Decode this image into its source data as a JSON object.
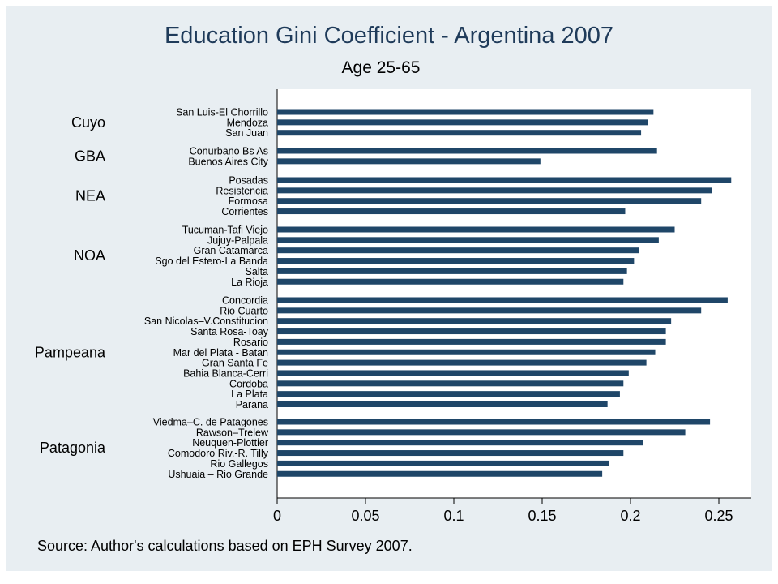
{
  "chart_data": {
    "type": "bar",
    "orientation": "horizontal",
    "title": "Education Gini Coefficient - Argentina 2007",
    "subtitle": "Age 25-65",
    "note": "Source: Author's calculations based on EPH Survey 2007.",
    "xlim": [
      0,
      0.27
    ],
    "xticks": [
      0,
      0.05,
      0.1,
      0.15,
      0.2,
      0.25
    ],
    "xtick_labels": [
      "0",
      "0.05",
      "0.1",
      "0.15",
      "0.2",
      "0.25"
    ],
    "grid": false,
    "colors": {
      "bar": "#1f4668",
      "background": "#e8eef2",
      "plot": "#ffffff",
      "title": "#1f3b5a"
    },
    "groups": [
      {
        "name": "Cuyo",
        "categories": [
          "San Luis-El Chorrillo",
          "Mendoza",
          "San Juan"
        ],
        "values": [
          0.213,
          0.21,
          0.206
        ]
      },
      {
        "name": "GBA",
        "categories": [
          "Conurbano Bs As",
          "Buenos Aires City"
        ],
        "values": [
          0.215,
          0.149
        ]
      },
      {
        "name": "NEA",
        "categories": [
          "Posadas",
          "Resistencia",
          "Formosa",
          "Corrientes"
        ],
        "values": [
          0.257,
          0.246,
          0.24,
          0.197
        ]
      },
      {
        "name": "NOA",
        "categories": [
          "Tucuman-Tafi Viejo",
          "Jujuy-Palpala",
          "Gran Catamarca",
          "Sgo del Estero-La Banda",
          "Salta",
          "La Rioja"
        ],
        "values": [
          0.225,
          0.216,
          0.205,
          0.202,
          0.198,
          0.196
        ]
      },
      {
        "name": "Pampeana",
        "categories": [
          "Concordia",
          "Rio Cuarto",
          "San Nicolas–V.Constitucion",
          "Santa Rosa-Toay",
          "Rosario",
          "Mar del Plata - Batan",
          "Gran Santa Fe",
          "Bahia Blanca-Cerri",
          "Cordoba",
          "La Plata",
          "Parana"
        ],
        "values": [
          0.255,
          0.24,
          0.223,
          0.22,
          0.22,
          0.214,
          0.209,
          0.199,
          0.196,
          0.194,
          0.187
        ]
      },
      {
        "name": "Patagonia",
        "categories": [
          "Viedma–C. de Patagones",
          "Rawson–Trelew",
          "Neuquen-Plottier",
          "Comodoro Riv.-R. Tilly",
          "Rio Gallegos",
          "Ushuaia – Rio Grande"
        ],
        "values": [
          0.245,
          0.231,
          0.207,
          0.196,
          0.188,
          0.184
        ]
      }
    ]
  }
}
